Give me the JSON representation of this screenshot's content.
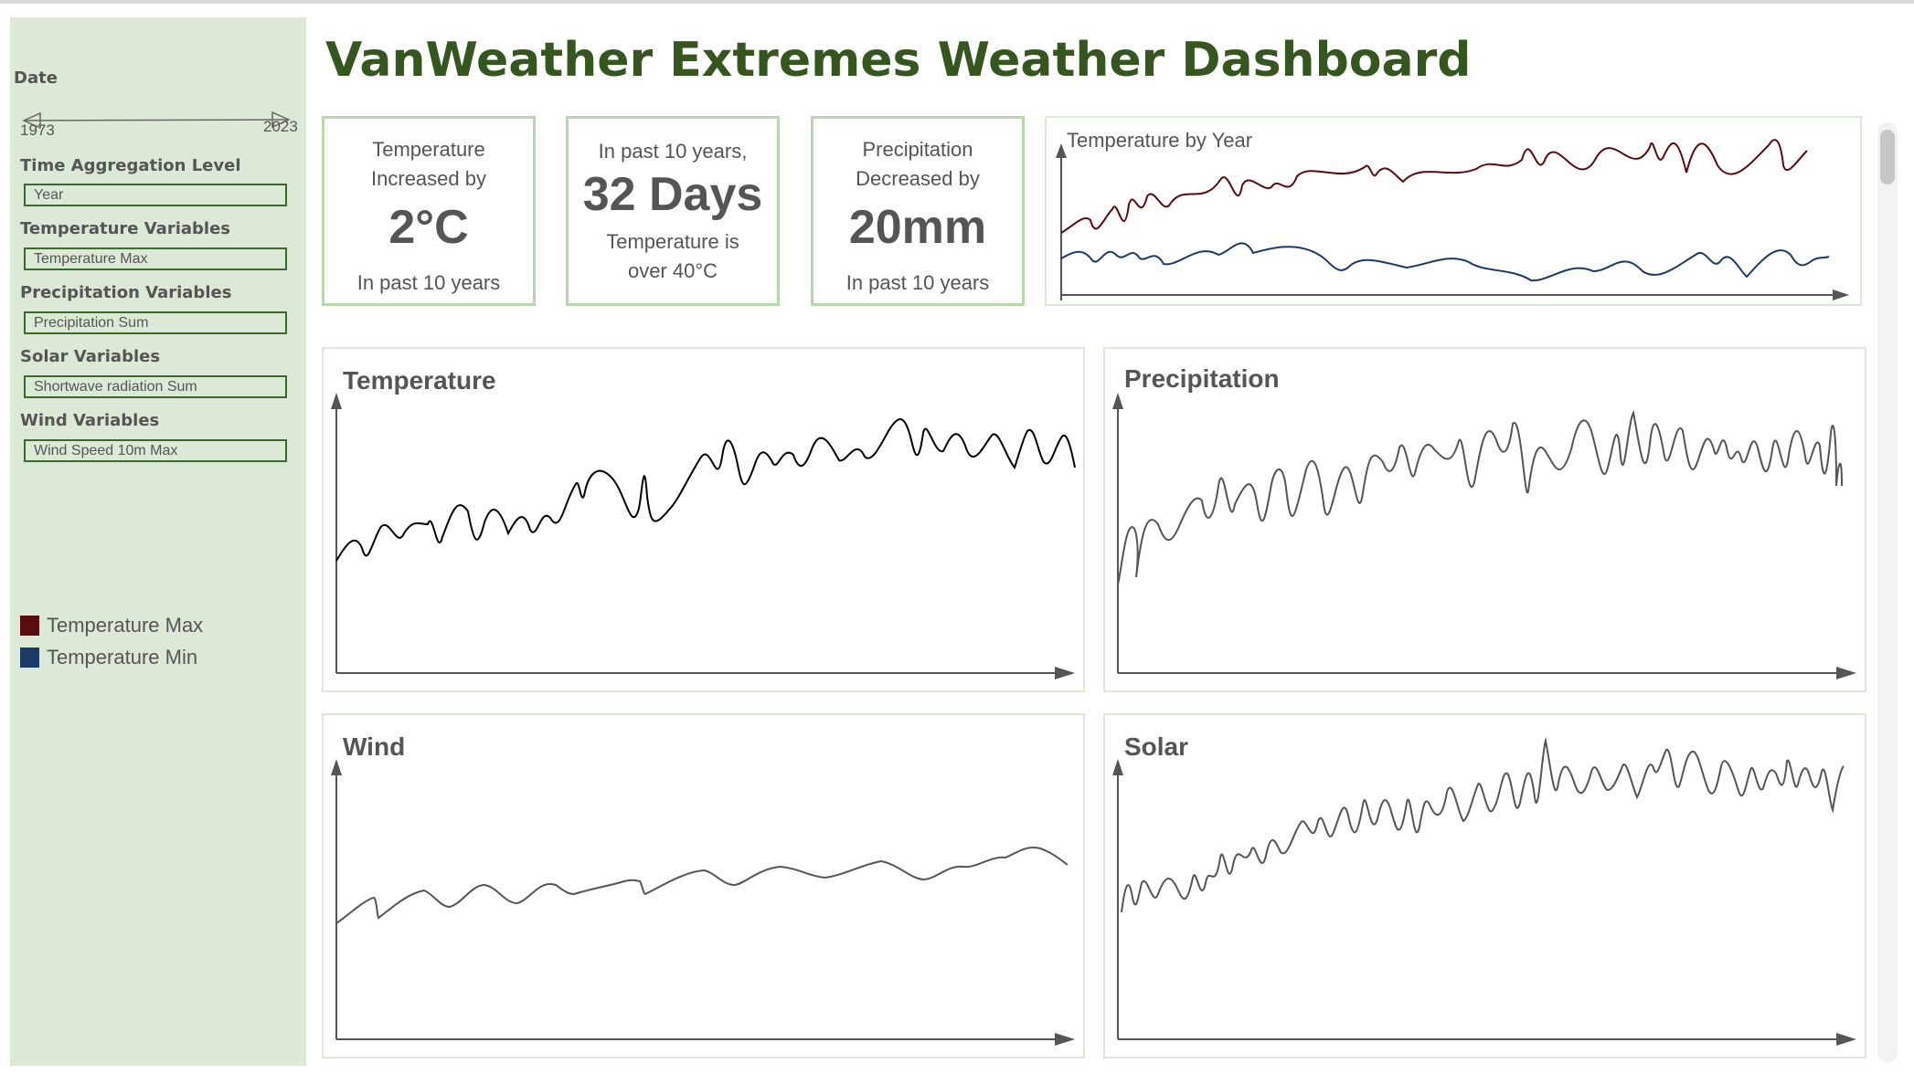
{
  "dashboard": {
    "title": "VanWeather Extremes Weather Dashboard"
  },
  "sidebar": {
    "date_label": "Date",
    "date_start": "1973",
    "date_end": "2023",
    "filters": [
      {
        "label": "Time Aggregation Level",
        "value": "Year"
      },
      {
        "label": "Temperature Variables",
        "value": "Temperature Max"
      },
      {
        "label": "Precipitation Variables",
        "value": "Precipitation Sum"
      },
      {
        "label": "Solar Variables",
        "value": "Shortwave radiation Sum"
      },
      {
        "label": "Wind Variables",
        "value": "Wind Speed 10m Max"
      }
    ],
    "legend": [
      {
        "name": "Temperature Max",
        "color": "#5a0c0c"
      },
      {
        "name": "Temperature Min",
        "color": "#1c3a66"
      }
    ]
  },
  "kpis": [
    {
      "top": "Temperature",
      "top2": "Increased by",
      "value": "2°C",
      "bottom": "In past 10 years",
      "bottom2": ""
    },
    {
      "top": "In past 10 years,",
      "top2": "",
      "value": "32 Days",
      "bottom": "Temperature is",
      "bottom2": "over 40°C"
    },
    {
      "top": "Precipitation",
      "top2": "Decreased by",
      "value": "20mm",
      "bottom": "In past 10 years",
      "bottom2": ""
    }
  ],
  "charts": {
    "temp_by_year": {
      "title": "Temperature by Year"
    },
    "temperature": {
      "title": "Temperature"
    },
    "precipitation": {
      "title": "Precipitation"
    },
    "wind": {
      "title": "Wind"
    },
    "solar": {
      "title": "Solar"
    }
  },
  "colors": {
    "accent": "#36561f",
    "sidebar_bg": "#dde9d7",
    "field_border": "#3b6b2a",
    "card_border": "#b8d7ad",
    "temp_max": "#5a0c0c",
    "temp_min": "#1c3a66"
  }
}
